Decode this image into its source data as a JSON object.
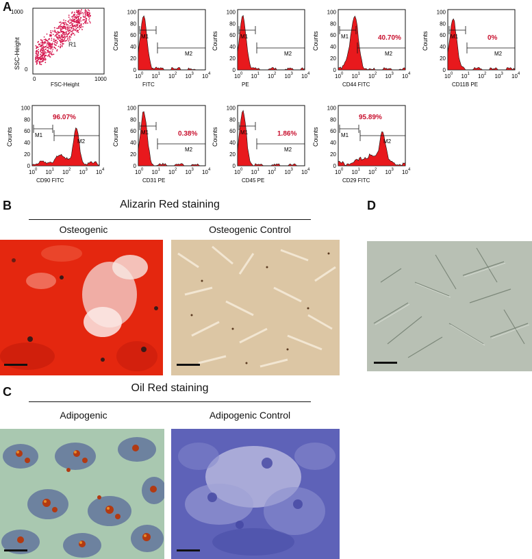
{
  "panels": {
    "A": "A",
    "B": "B",
    "C": "C",
    "D": "D"
  },
  "scatter": {
    "x_label": "FSC-Height",
    "y_label": "SSC-Height",
    "gate_label": "R1",
    "x_ticks": [
      "0",
      "1000"
    ],
    "y_ticks": [
      "0",
      "1000"
    ]
  },
  "histograms": [
    {
      "x_label": "FITC",
      "percent": "",
      "shape": "low"
    },
    {
      "x_label": "PE",
      "percent": "",
      "shape": "low"
    },
    {
      "x_label": "CD44 FITC",
      "percent": "40.70%",
      "shape": "mid"
    },
    {
      "x_label": "CD11B PE",
      "percent": "0%",
      "shape": "low"
    },
    {
      "x_label": "CD90 FITC",
      "percent": "96.07%",
      "shape": "high"
    },
    {
      "x_label": "CD31 PE",
      "percent": "0.38%",
      "shape": "low"
    },
    {
      "x_label": "CD45  PE",
      "percent": "1.86%",
      "shape": "low"
    },
    {
      "x_label": "CD29 FITC",
      "percent": "95.89%",
      "shape": "high"
    }
  ],
  "histogram_common": {
    "y_label": "Counts",
    "y_ticks": [
      "0",
      "20",
      "40",
      "60",
      "80",
      "100"
    ],
    "x_ticks": [
      "10",
      "10",
      "10",
      "10",
      "10"
    ],
    "x_tick_exponents": [
      "0",
      "1",
      "2",
      "3",
      "4"
    ],
    "gate_m1": "M1",
    "gate_m2": "M2"
  },
  "section_b": {
    "title": "Alizarin Red staining",
    "left_label": "Osteogenic",
    "right_label": "Osteogenic Control"
  },
  "section_c": {
    "title": "Oil Red staining",
    "left_label": "Adipogenic",
    "right_label": "Adipogenic Control"
  },
  "colors": {
    "histogram_fill": "#e8191d",
    "percent_text": "#c8102e",
    "scatter_dot": "#d4124a",
    "alizarin": "#e82a10",
    "control_beige": "#dcc4a0",
    "oil_red_bg": "#a9c7b8",
    "adipo_control": "#6a6cc0",
    "phase_contrast": "#b4bcb0"
  }
}
